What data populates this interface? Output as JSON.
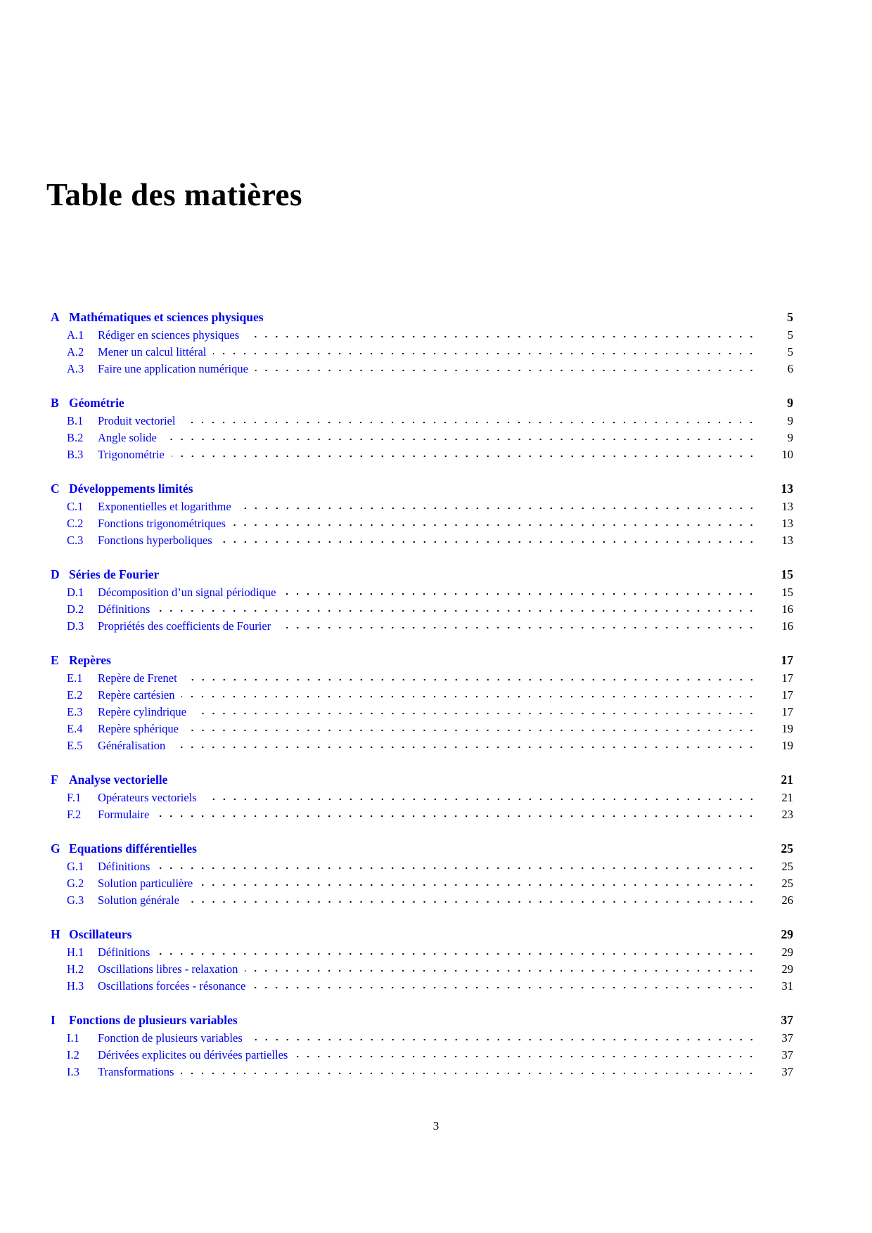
{
  "page": {
    "title": "Table des matières",
    "footer_page_number": "3"
  },
  "colors": {
    "link_blue": "#0000EE",
    "text_black": "#000000",
    "background": "#ffffff"
  },
  "toc": {
    "sections": [
      {
        "label": "A",
        "title": "Mathématiques et sciences physiques",
        "page": "5",
        "items": [
          {
            "label": "A.1",
            "title": "Rédiger en sciences physiques",
            "page": "5"
          },
          {
            "label": "A.2",
            "title": "Mener un calcul littéral",
            "page": "5"
          },
          {
            "label": "A.3",
            "title": "Faire une application numérique",
            "page": "6"
          }
        ]
      },
      {
        "label": "B",
        "title": "Géométrie",
        "page": "9",
        "items": [
          {
            "label": "B.1",
            "title": "Produit vectoriel",
            "page": "9"
          },
          {
            "label": "B.2",
            "title": "Angle solide",
            "page": "9"
          },
          {
            "label": "B.3",
            "title": "Trigonométrie",
            "page": "10"
          }
        ]
      },
      {
        "label": "C",
        "title": "Développements limités",
        "page": "13",
        "items": [
          {
            "label": "C.1",
            "title": "Exponentielles et logarithme",
            "page": "13"
          },
          {
            "label": "C.2",
            "title": "Fonctions trigonométriques",
            "page": "13"
          },
          {
            "label": "C.3",
            "title": "Fonctions hyperboliques",
            "page": "13"
          }
        ]
      },
      {
        "label": "D",
        "title": "Séries de Fourier",
        "page": "15",
        "items": [
          {
            "label": "D.1",
            "title": "Décomposition d’un signal périodique",
            "page": "15"
          },
          {
            "label": "D.2",
            "title": "Définitions",
            "page": "16"
          },
          {
            "label": "D.3",
            "title": "Propriétés des coefficients de Fourier",
            "page": "16"
          }
        ]
      },
      {
        "label": "E",
        "title": "Repères",
        "page": "17",
        "items": [
          {
            "label": "E.1",
            "title": "Repère de Frenet",
            "page": "17"
          },
          {
            "label": "E.2",
            "title": "Repère cartésien",
            "page": "17"
          },
          {
            "label": "E.3",
            "title": "Repère cylindrique",
            "page": "17"
          },
          {
            "label": "E.4",
            "title": "Repère sphérique",
            "page": "19"
          },
          {
            "label": "E.5",
            "title": "Généralisation",
            "page": "19"
          }
        ]
      },
      {
        "label": "F",
        "title": "Analyse vectorielle",
        "page": "21",
        "items": [
          {
            "label": "F.1",
            "title": "Opérateurs vectoriels",
            "page": "21"
          },
          {
            "label": "F.2",
            "title": "Formulaire",
            "page": "23"
          }
        ]
      },
      {
        "label": "G",
        "title": "Equations différentielles",
        "page": "25",
        "items": [
          {
            "label": "G.1",
            "title": "Définitions",
            "page": "25"
          },
          {
            "label": "G.2",
            "title": "Solution particulière",
            "page": "25"
          },
          {
            "label": "G.3",
            "title": "Solution générale",
            "page": "26"
          }
        ]
      },
      {
        "label": "H",
        "title": "Oscillateurs",
        "page": "29",
        "items": [
          {
            "label": "H.1",
            "title": "Définitions",
            "page": "29"
          },
          {
            "label": "H.2",
            "title": "Oscillations libres - relaxation",
            "page": "29"
          },
          {
            "label": "H.3",
            "title": "Oscillations forcées - résonance",
            "page": "31"
          }
        ]
      },
      {
        "label": "I",
        "title": "Fonctions de plusieurs variables",
        "page": "37",
        "items": [
          {
            "label": "I.1",
            "title": "Fonction de plusieurs variables",
            "page": "37"
          },
          {
            "label": "I.2",
            "title": "Dérivées explicites ou dérivées partielles",
            "page": "37"
          },
          {
            "label": "I.3",
            "title": "Transformations",
            "page": "37"
          }
        ]
      }
    ]
  }
}
